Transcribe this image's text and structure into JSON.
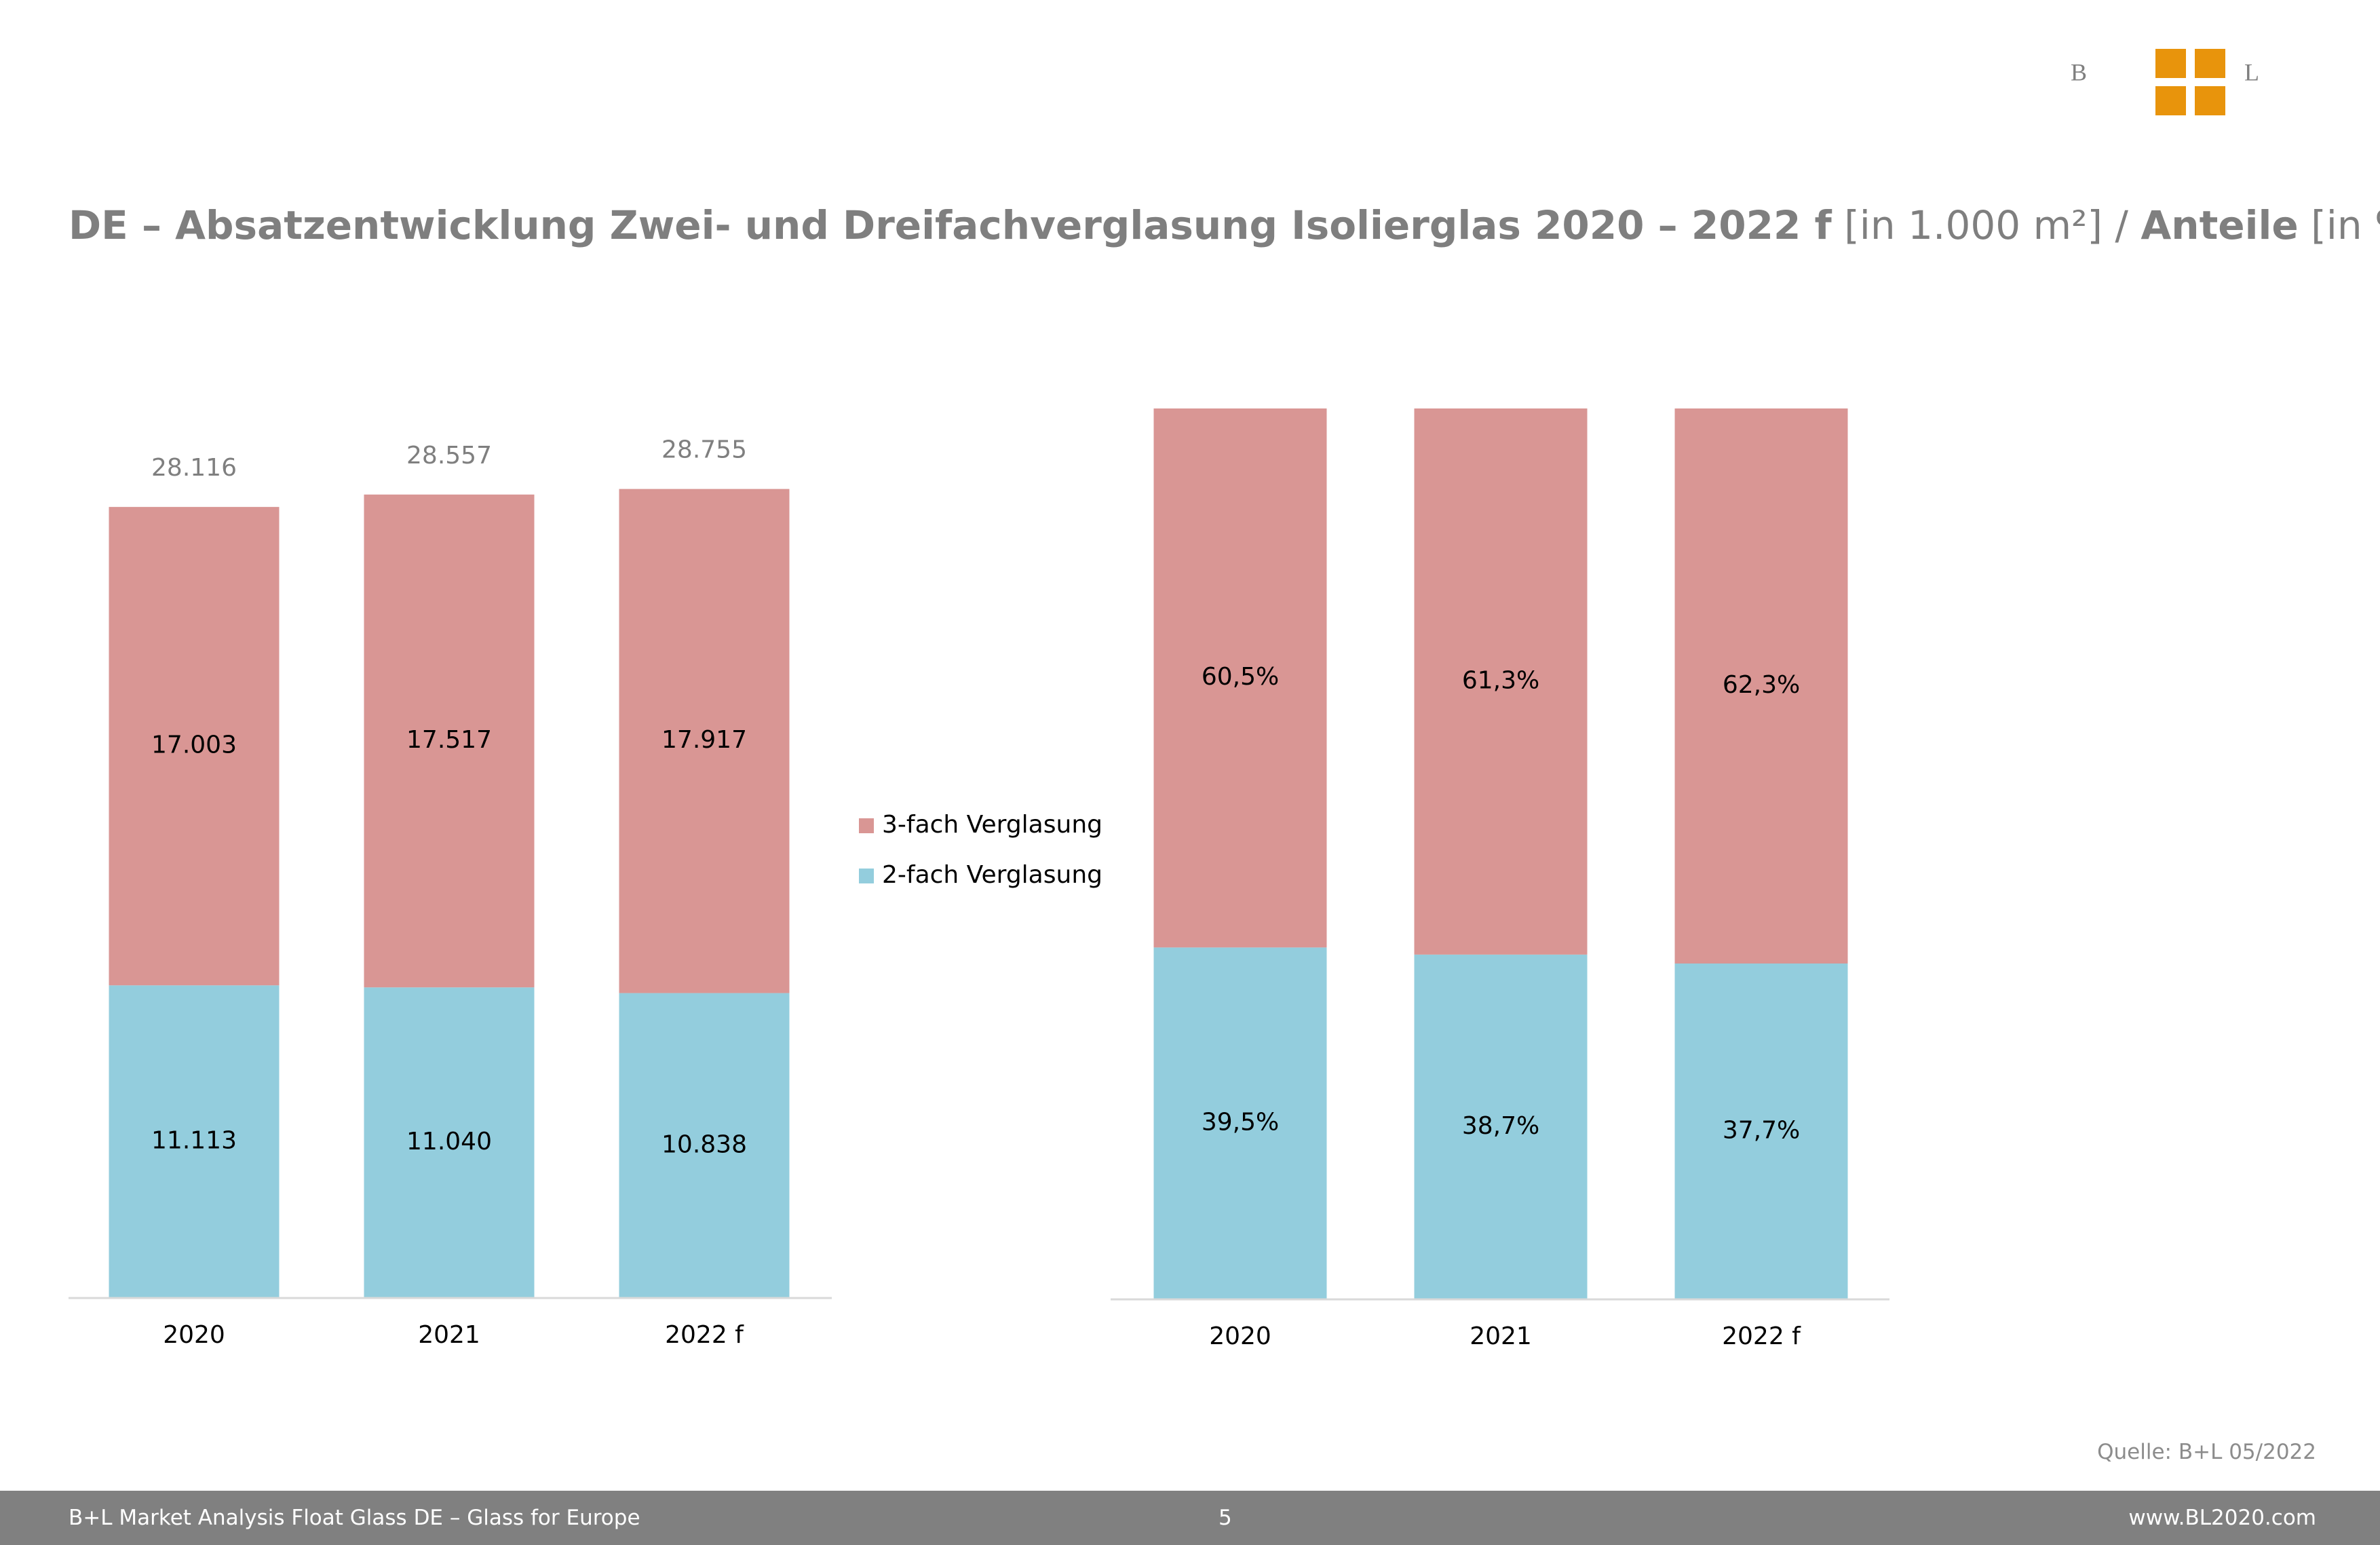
{
  "logo": {
    "left": "B",
    "right": "L"
  },
  "title": {
    "main": "DE – Absatzentwicklung Zwei- und Dreifachverglasung Isolierglas 2020 – 2022 f",
    "unit": "[in 1.000 m²]",
    "separator": "/",
    "share": "Anteile",
    "share_unit": "[in %]"
  },
  "chart_data": [
    {
      "type": "bar",
      "stacked": true,
      "categories": [
        "2020",
        "2021",
        "2022 f"
      ],
      "series": [
        {
          "name": "2-fach Verglasung",
          "color": "#93cddd",
          "values": [
            11113,
            11040,
            10838
          ],
          "value_labels": [
            "11.113",
            "11.040",
            "10.838"
          ]
        },
        {
          "name": "3-fach Verglasung",
          "color": "#d99694",
          "values": [
            17003,
            17517,
            17917
          ],
          "value_labels": [
            "17.003",
            "17.517",
            "17.917"
          ]
        }
      ],
      "totals": {
        "values": [
          28116,
          28557,
          28755
        ],
        "value_labels": [
          "28.116",
          "28.557",
          "28.755"
        ]
      },
      "ylim": [
        0,
        30000
      ],
      "legend": "right"
    },
    {
      "type": "bar",
      "stacked": true,
      "categories": [
        "2020",
        "2021",
        "2022 f"
      ],
      "series": [
        {
          "color": "#93cddd",
          "values": [
            39.5,
            38.7,
            37.7
          ],
          "value_labels": [
            "39,5%",
            "38,7%",
            "37,7%"
          ]
        },
        {
          "color": "#d99694",
          "values": [
            60.5,
            61.3,
            62.3
          ],
          "value_labels": [
            "60,5%",
            "61,3%",
            "62,3%"
          ]
        }
      ],
      "ylim": [
        0,
        100
      ]
    }
  ],
  "source": "Quelle: B+L 05/2022",
  "footer": {
    "left": "B+L Market Analysis Float Glass DE – Glass for Europe",
    "page": "5",
    "right": "www.BL2020.com"
  }
}
